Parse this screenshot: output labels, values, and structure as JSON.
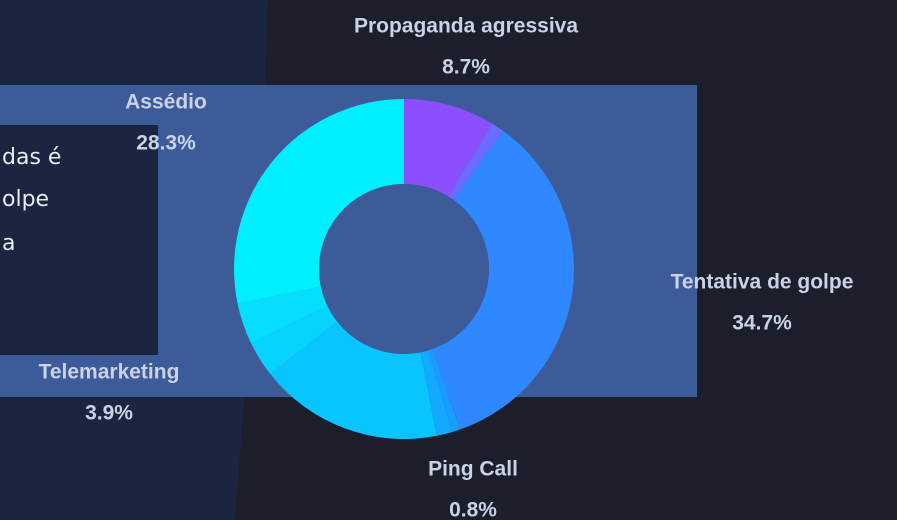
{
  "ui": {
    "text_lines": [
      "das é",
      "olpe",
      "a"
    ]
  },
  "chart_data": {
    "type": "donut",
    "categories": [
      "Propaganda agressiva",
      null,
      "Tentativa de golpe",
      "Ping Call",
      null,
      null,
      null,
      "Telemarketing",
      "Assédio"
    ],
    "values": [
      8.7,
      1.2,
      34.7,
      0.8,
      1.5,
      17.5,
      3.4,
      3.9,
      28.3
    ],
    "value_labels": [
      "8.7%",
      null,
      "34.7%",
      "0.8%",
      null,
      null,
      null,
      "3.9%",
      "28.3%"
    ],
    "colors": [
      "#8b4fff",
      "#6a6cff",
      "#2f88ff",
      "#1a9bff",
      "#12a9ff",
      "#09c5ff",
      "#06d3ff",
      "#04dfff",
      "#00efff"
    ]
  }
}
